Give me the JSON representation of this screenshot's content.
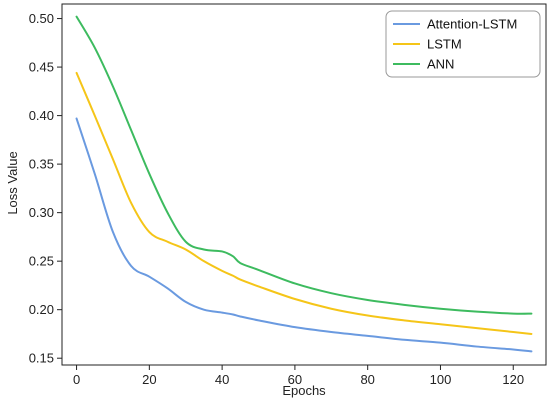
{
  "chart_data": {
    "type": "line",
    "title": "",
    "xlabel": "Epochs",
    "ylabel": "Loss Value",
    "xlim": [
      -4,
      129
    ],
    "ylim": [
      0.143,
      0.515
    ],
    "xticks": [
      0,
      20,
      40,
      60,
      80,
      100,
      120
    ],
    "yticks": [
      0.15,
      0.2,
      0.25,
      0.3,
      0.35,
      0.4,
      0.45,
      0.5
    ],
    "ytick_labels": [
      "0.15",
      "0.20",
      "0.25",
      "0.30",
      "0.35",
      "0.40",
      "0.45",
      "0.50"
    ],
    "grid": false,
    "legend": "top-right",
    "x": [
      0,
      5,
      10,
      15,
      20,
      25,
      30,
      35,
      40,
      43,
      45,
      50,
      60,
      70,
      80,
      90,
      100,
      110,
      120,
      125
    ],
    "series": [
      {
        "name": "Attention-LSTM",
        "color": "#6a9ae0",
        "values": [
          0.397,
          0.34,
          0.28,
          0.245,
          0.234,
          0.222,
          0.208,
          0.2,
          0.197,
          0.195,
          0.193,
          0.189,
          0.182,
          0.177,
          0.173,
          0.169,
          0.166,
          0.162,
          0.159,
          0.157
        ]
      },
      {
        "name": "LSTM",
        "color": "#f5c518",
        "values": [
          0.444,
          0.4,
          0.355,
          0.31,
          0.28,
          0.27,
          0.262,
          0.25,
          0.24,
          0.235,
          0.231,
          0.224,
          0.211,
          0.201,
          0.194,
          0.189,
          0.185,
          0.181,
          0.177,
          0.175
        ]
      },
      {
        "name": "ANN",
        "color": "#3dbb5f",
        "values": [
          0.502,
          0.47,
          0.43,
          0.385,
          0.34,
          0.3,
          0.27,
          0.262,
          0.26,
          0.255,
          0.248,
          0.241,
          0.227,
          0.217,
          0.21,
          0.205,
          0.201,
          0.198,
          0.196,
          0.196
        ]
      }
    ]
  }
}
